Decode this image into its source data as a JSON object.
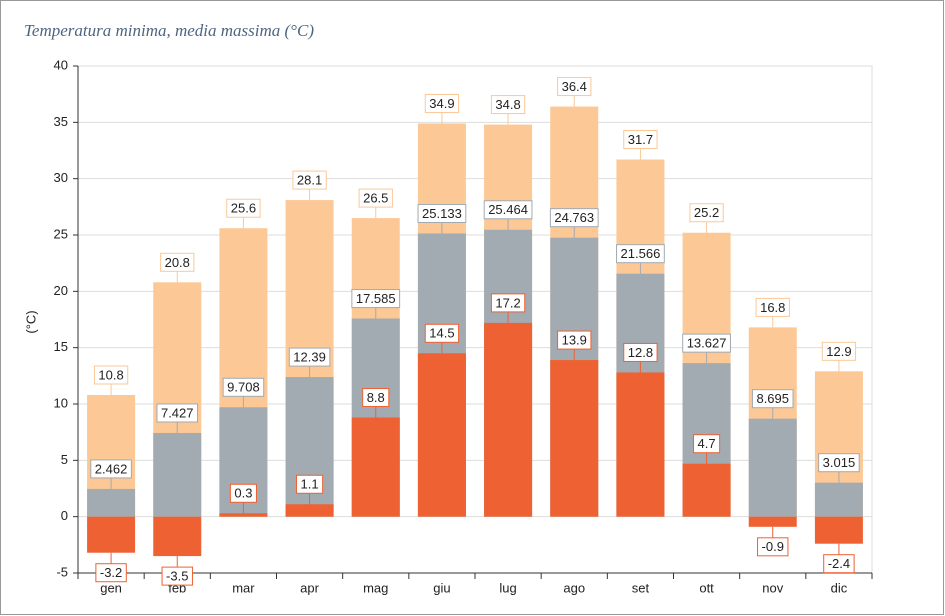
{
  "chart_data": {
    "type": "bar",
    "title": "Temperatura minima, media massima (°C)",
    "y_label": "(°C)",
    "categories": [
      "gen",
      "feb",
      "mar",
      "apr",
      "mag",
      "giu",
      "lug",
      "ago",
      "set",
      "ott",
      "nov",
      "dic"
    ],
    "series": [
      {
        "color": "#fbc896",
        "values": [
          10.8,
          20.8,
          25.6,
          28.1,
          26.5,
          34.9,
          34.8,
          36.4,
          31.7,
          25.2,
          16.8,
          12.9
        ]
      },
      {
        "color": "#a2aab2",
        "values": [
          2.462,
          7.427,
          9.708,
          12.39,
          17.585,
          25.133,
          25.464,
          24.763,
          21.566,
          13.627,
          8.695,
          3.015
        ]
      },
      {
        "color": "#ee6133",
        "values": [
          -3.2,
          -3.5,
          0.3,
          1.1,
          8.8,
          14.5,
          17.2,
          13.9,
          12.8,
          4.7,
          -0.9,
          -2.4
        ]
      }
    ],
    "ylim": [
      -5,
      40
    ],
    "yticks": [
      -5,
      0,
      5,
      10,
      15,
      20,
      25,
      30,
      35,
      40
    ],
    "grid": true
  }
}
